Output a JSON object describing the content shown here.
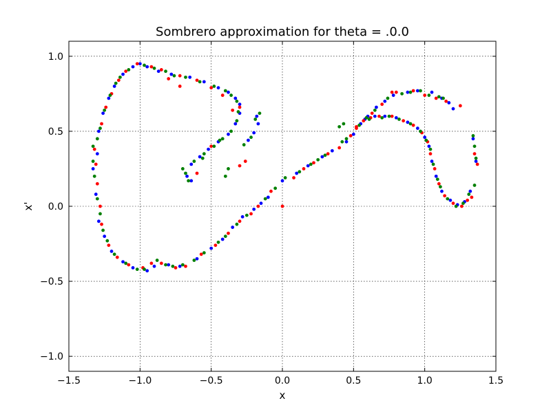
{
  "chart_data": {
    "type": "scatter",
    "title": "Sombrero approximation for theta = .0.0",
    "xlabel": "x",
    "ylabel": "x'",
    "xlim": [
      -1.5,
      1.5
    ],
    "ylim": [
      -1.1,
      1.1
    ],
    "xticks": [
      -1.5,
      -1.0,
      -0.5,
      0.0,
      0.5,
      1.0,
      1.5
    ],
    "xtick_labels": [
      "−1.5",
      "−1.0",
      "−0.5",
      "0.0",
      "0.5",
      "1.0",
      "1.5"
    ],
    "yticks": [
      -1.0,
      -0.5,
      0.0,
      0.5,
      1.0
    ],
    "ytick_labels": [
      "−1.0",
      "−0.5",
      "0.0",
      "0.5",
      "1.0"
    ],
    "grid": true,
    "legend": "none",
    "series": [
      {
        "color": "#0000ff",
        "points": [
          [
            -1.3,
            0.35
          ],
          [
            -1.33,
            0.25
          ],
          [
            -1.31,
            0.08
          ],
          [
            -1.29,
            -0.1
          ],
          [
            -1.25,
            -0.2
          ],
          [
            -1.2,
            -0.3
          ],
          [
            -1.12,
            -0.37
          ],
          [
            -1.05,
            -0.41
          ],
          [
            -0.95,
            -0.43
          ],
          [
            -0.9,
            -0.4
          ],
          [
            -0.8,
            -0.39
          ],
          [
            -0.72,
            -0.4
          ],
          [
            -0.6,
            -0.35
          ],
          [
            -0.5,
            -0.28
          ],
          [
            -0.42,
            -0.22
          ],
          [
            -0.35,
            -0.14
          ],
          [
            -0.28,
            -0.07
          ],
          [
            -0.2,
            -0.02
          ],
          [
            -0.15,
            0.02
          ],
          [
            -0.1,
            0.06
          ],
          [
            0.0,
            0.17
          ],
          [
            0.1,
            0.22
          ],
          [
            0.18,
            0.27
          ],
          [
            0.28,
            0.33
          ],
          [
            0.35,
            0.37
          ],
          [
            0.45,
            0.43
          ],
          [
            0.5,
            0.48
          ],
          [
            0.55,
            0.55
          ],
          [
            0.6,
            0.6
          ],
          [
            0.66,
            0.66
          ],
          [
            0.72,
            0.7
          ],
          [
            0.78,
            0.74
          ],
          [
            0.88,
            0.76
          ],
          [
            0.95,
            0.77
          ],
          [
            1.05,
            0.76
          ],
          [
            1.12,
            0.72
          ],
          [
            1.17,
            0.69
          ],
          [
            1.2,
            0.65
          ],
          [
            1.34,
            0.45
          ],
          [
            1.36,
            0.3
          ],
          [
            1.32,
            0.1
          ],
          [
            1.28,
            0.03
          ],
          [
            1.23,
            0.01
          ],
          [
            1.18,
            0.04
          ],
          [
            1.12,
            0.1
          ],
          [
            1.08,
            0.2
          ],
          [
            1.05,
            0.3
          ],
          [
            1.03,
            0.4
          ],
          [
            1.0,
            0.46
          ],
          [
            0.95,
            0.52
          ],
          [
            0.88,
            0.56
          ],
          [
            0.8,
            0.59
          ],
          [
            0.72,
            0.6
          ],
          [
            0.65,
            0.6
          ],
          [
            0.58,
            0.58
          ],
          [
            -0.64,
            0.17
          ],
          [
            -0.67,
            0.2
          ],
          [
            -0.64,
            0.28
          ],
          [
            -0.58,
            0.33
          ],
          [
            -0.52,
            0.38
          ],
          [
            -0.45,
            0.43
          ],
          [
            -0.38,
            0.48
          ],
          [
            -0.33,
            0.55
          ],
          [
            -0.3,
            0.62
          ],
          [
            -0.3,
            0.68
          ],
          [
            -0.33,
            0.72
          ],
          [
            -0.38,
            0.76
          ],
          [
            -0.45,
            0.79
          ],
          [
            -0.55,
            0.83
          ],
          [
            -0.65,
            0.86
          ],
          [
            -0.78,
            0.88
          ],
          [
            -0.87,
            0.9
          ],
          [
            -0.95,
            0.93
          ],
          [
            -1.0,
            0.95
          ],
          [
            -1.05,
            0.93
          ],
          [
            -1.12,
            0.88
          ],
          [
            -1.18,
            0.8
          ],
          [
            -1.22,
            0.72
          ],
          [
            -1.26,
            0.62
          ],
          [
            -1.29,
            0.5
          ],
          [
            -0.18,
            0.6
          ],
          [
            -0.17,
            0.55
          ],
          [
            -0.2,
            0.49
          ],
          [
            -0.24,
            0.44
          ]
        ]
      },
      {
        "color": "#ff0000",
        "points": [
          [
            -1.32,
            0.38
          ],
          [
            -1.31,
            0.28
          ],
          [
            -1.3,
            0.15
          ],
          [
            -1.28,
            0.0
          ],
          [
            -1.27,
            -0.12
          ],
          [
            -1.22,
            -0.26
          ],
          [
            -1.16,
            -0.34
          ],
          [
            -1.08,
            -0.39
          ],
          [
            -0.98,
            -0.41
          ],
          [
            -0.92,
            -0.38
          ],
          [
            -0.85,
            -0.38
          ],
          [
            -0.75,
            -0.41
          ],
          [
            -0.68,
            -0.4
          ],
          [
            -0.57,
            -0.32
          ],
          [
            -0.47,
            -0.26
          ],
          [
            -0.38,
            -0.18
          ],
          [
            -0.3,
            -0.1
          ],
          [
            -0.22,
            -0.05
          ],
          [
            -0.17,
            0.0
          ],
          [
            -0.08,
            0.1
          ],
          [
            0.0,
            0.0
          ],
          [
            0.08,
            0.19
          ],
          [
            0.15,
            0.25
          ],
          [
            0.22,
            0.29
          ],
          [
            0.32,
            0.35
          ],
          [
            0.4,
            0.39
          ],
          [
            0.48,
            0.47
          ],
          [
            0.52,
            0.52
          ],
          [
            0.57,
            0.57
          ],
          [
            0.63,
            0.62
          ],
          [
            0.7,
            0.68
          ],
          [
            0.77,
            0.76
          ],
          [
            0.8,
            0.76
          ],
          [
            0.92,
            0.77
          ],
          [
            1.0,
            0.74
          ],
          [
            1.08,
            0.72
          ],
          [
            1.15,
            0.7
          ],
          [
            1.25,
            0.67
          ],
          [
            1.35,
            0.35
          ],
          [
            1.37,
            0.28
          ],
          [
            1.33,
            0.06
          ],
          [
            1.3,
            0.04
          ],
          [
            1.26,
            0.0
          ],
          [
            1.2,
            0.02
          ],
          [
            1.14,
            0.07
          ],
          [
            1.1,
            0.15
          ],
          [
            1.07,
            0.25
          ],
          [
            1.04,
            0.35
          ],
          [
            1.02,
            0.43
          ],
          [
            0.98,
            0.49
          ],
          [
            0.92,
            0.54
          ],
          [
            0.85,
            0.57
          ],
          [
            0.77,
            0.6
          ],
          [
            0.68,
            0.6
          ],
          [
            0.62,
            0.59
          ],
          [
            0.52,
            0.53
          ],
          [
            -0.6,
            0.22
          ],
          [
            -0.5,
            0.4
          ],
          [
            -0.35,
            0.64
          ],
          [
            -0.3,
            0.66
          ],
          [
            -0.42,
            0.74
          ],
          [
            -0.5,
            0.79
          ],
          [
            -0.6,
            0.84
          ],
          [
            -0.72,
            0.87
          ],
          [
            -0.85,
            0.91
          ],
          [
            -0.92,
            0.93
          ],
          [
            -1.02,
            0.95
          ],
          [
            -1.1,
            0.9
          ],
          [
            -1.15,
            0.84
          ],
          [
            -1.2,
            0.75
          ],
          [
            -1.24,
            0.66
          ],
          [
            -1.27,
            0.55
          ],
          [
            -0.3,
            0.27
          ],
          [
            -0.26,
            0.3
          ],
          [
            -0.72,
            0.8
          ],
          [
            -0.8,
            0.85
          ]
        ]
      },
      {
        "color": "#008000",
        "points": [
          [
            -1.33,
            0.4
          ],
          [
            -1.33,
            0.3
          ],
          [
            -1.32,
            0.2
          ],
          [
            -1.3,
            0.05
          ],
          [
            -1.28,
            -0.05
          ],
          [
            -1.26,
            -0.16
          ],
          [
            -1.23,
            -0.23
          ],
          [
            -1.18,
            -0.32
          ],
          [
            -1.1,
            -0.38
          ],
          [
            -1.02,
            -0.42
          ],
          [
            -0.97,
            -0.42
          ],
          [
            -0.88,
            -0.36
          ],
          [
            -0.82,
            -0.39
          ],
          [
            -0.77,
            -0.4
          ],
          [
            -0.7,
            -0.39
          ],
          [
            -0.62,
            -0.36
          ],
          [
            -0.55,
            -0.31
          ],
          [
            -0.45,
            -0.24
          ],
          [
            -0.4,
            -0.2
          ],
          [
            -0.32,
            -0.12
          ],
          [
            -0.25,
            -0.06
          ],
          [
            -0.12,
            0.05
          ],
          [
            -0.05,
            0.12
          ],
          [
            0.02,
            0.19
          ],
          [
            0.12,
            0.23
          ],
          [
            0.2,
            0.28
          ],
          [
            0.25,
            0.31
          ],
          [
            0.3,
            0.34
          ],
          [
            0.42,
            0.43
          ],
          [
            0.45,
            0.45
          ],
          [
            0.54,
            0.54
          ],
          [
            0.59,
            0.59
          ],
          [
            0.65,
            0.64
          ],
          [
            0.74,
            0.72
          ],
          [
            0.84,
            0.75
          ],
          [
            0.9,
            0.76
          ],
          [
            0.97,
            0.77
          ],
          [
            1.03,
            0.74
          ],
          [
            1.1,
            0.73
          ],
          [
            1.13,
            0.72
          ],
          [
            1.34,
            0.47
          ],
          [
            1.35,
            0.4
          ],
          [
            1.36,
            0.32
          ],
          [
            1.35,
            0.14
          ],
          [
            1.31,
            0.08
          ],
          [
            1.27,
            0.02
          ],
          [
            1.22,
            0.0
          ],
          [
            1.16,
            0.05
          ],
          [
            1.11,
            0.13
          ],
          [
            1.09,
            0.18
          ],
          [
            1.06,
            0.28
          ],
          [
            1.04,
            0.38
          ],
          [
            1.01,
            0.44
          ],
          [
            0.97,
            0.5
          ],
          [
            0.9,
            0.55
          ],
          [
            0.82,
            0.58
          ],
          [
            0.75,
            0.6
          ],
          [
            0.7,
            0.59
          ],
          [
            0.61,
            0.58
          ],
          [
            0.4,
            0.53
          ],
          [
            0.43,
            0.55
          ],
          [
            -0.66,
            0.17
          ],
          [
            -0.68,
            0.22
          ],
          [
            -0.62,
            0.3
          ],
          [
            -0.55,
            0.35
          ],
          [
            -0.48,
            0.4
          ],
          [
            -0.42,
            0.45
          ],
          [
            -0.36,
            0.5
          ],
          [
            -0.32,
            0.57
          ],
          [
            -0.31,
            0.63
          ],
          [
            -0.32,
            0.7
          ],
          [
            -0.36,
            0.74
          ],
          [
            -0.4,
            0.77
          ],
          [
            -0.48,
            0.8
          ],
          [
            -0.58,
            0.83
          ],
          [
            -0.68,
            0.86
          ],
          [
            -0.76,
            0.87
          ],
          [
            -0.82,
            0.9
          ],
          [
            -0.9,
            0.92
          ],
          [
            -0.97,
            0.94
          ],
          [
            -1.08,
            0.91
          ],
          [
            -1.14,
            0.86
          ],
          [
            -1.17,
            0.82
          ],
          [
            -1.21,
            0.74
          ],
          [
            -1.25,
            0.64
          ],
          [
            -1.28,
            0.52
          ],
          [
            -1.3,
            0.45
          ],
          [
            -0.19,
            0.58
          ],
          [
            -0.16,
            0.62
          ],
          [
            -0.22,
            0.46
          ],
          [
            -0.27,
            0.41
          ],
          [
            -0.38,
            0.25
          ],
          [
            -0.4,
            0.2
          ],
          [
            -0.56,
            0.32
          ],
          [
            -0.44,
            0.44
          ],
          [
            -0.7,
            0.25
          ]
        ]
      }
    ]
  }
}
